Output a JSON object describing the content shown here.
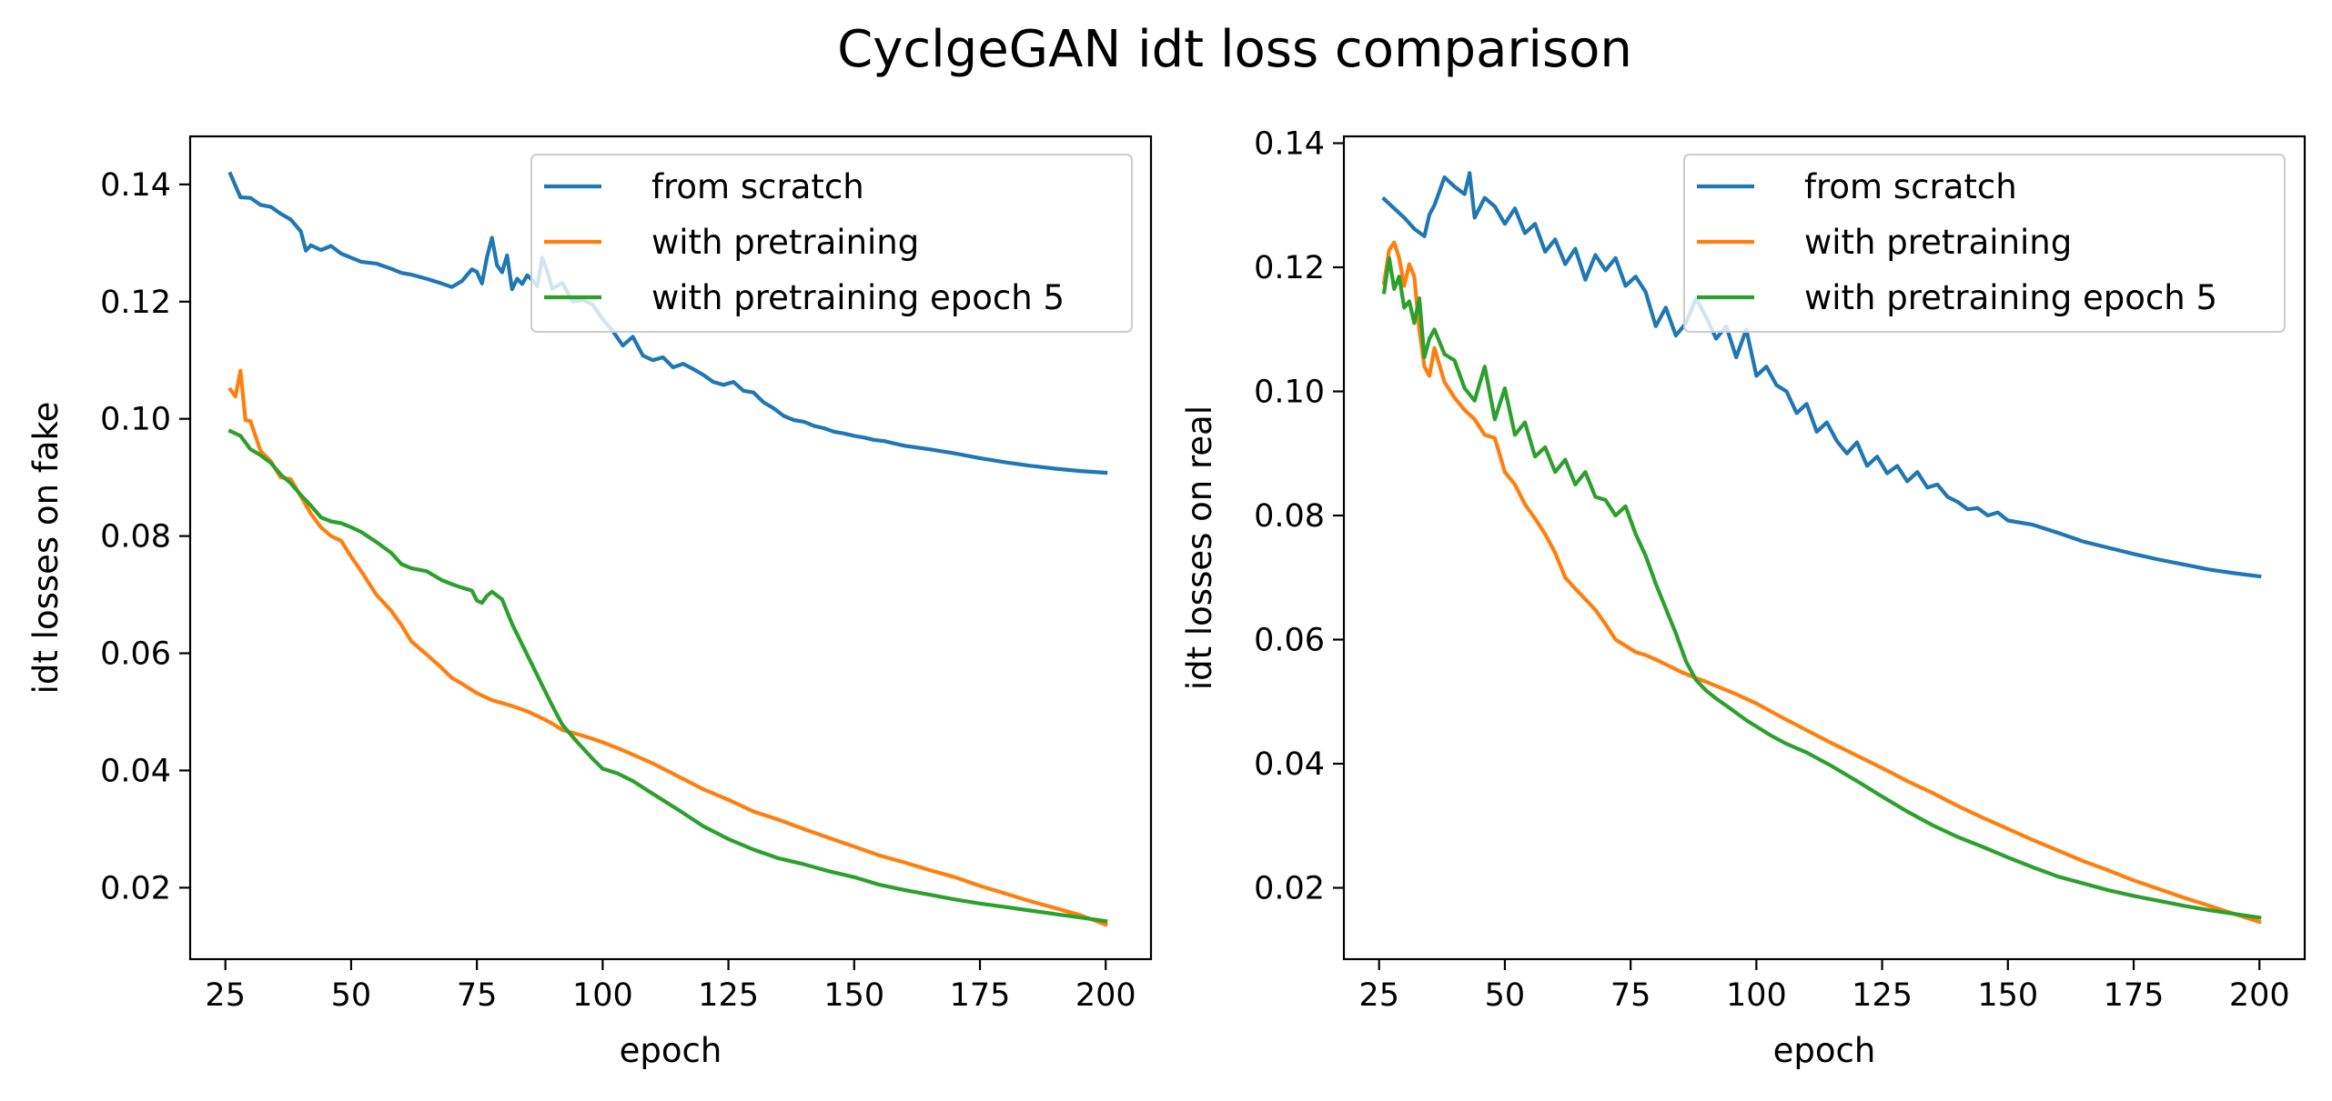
{
  "suptitle": "CyclgeGAN idt loss comparison",
  "colors": {
    "from_scratch": "#1f77b4",
    "with_pretraining": "#ff7f0e",
    "with_pretraining_epoch_5": "#2ca02c"
  },
  "chart_data": [
    {
      "type": "line",
      "title": "",
      "xlabel": "epoch",
      "ylabel": "idt losses on fake",
      "xlim": [
        18,
        209
      ],
      "ylim": [
        0.0078,
        0.1482
      ],
      "xticks": [
        25,
        50,
        75,
        100,
        125,
        150,
        175,
        200
      ],
      "xtick_labels": [
        "25",
        "50",
        "75",
        "100",
        "125",
        "150",
        "175",
        "200"
      ],
      "yticks": [
        0.02,
        0.04,
        0.06,
        0.08,
        0.1,
        0.12,
        0.14
      ],
      "ytick_labels": [
        "0.02",
        "0.04",
        "0.06",
        "0.08",
        "0.10",
        "0.12",
        "0.14"
      ],
      "grid": false,
      "legend_position": "top-right",
      "series": [
        {
          "name": "from scratch",
          "color": "#1f77b4",
          "x": [
            26,
            28,
            30,
            32,
            34,
            36,
            38,
            40,
            41,
            42,
            44,
            46,
            48,
            50,
            52,
            55,
            58,
            60,
            62,
            65,
            68,
            70,
            72,
            74,
            75,
            76,
            77,
            78,
            79,
            80,
            81,
            82,
            83,
            84,
            85,
            86,
            87,
            88,
            89,
            90,
            92,
            94,
            96,
            98,
            100,
            102,
            104,
            106,
            108,
            110,
            112,
            114,
            116,
            118,
            120,
            122,
            124,
            126,
            128,
            130,
            132,
            134,
            136,
            138,
            140,
            142,
            144,
            146,
            148,
            150,
            152,
            154,
            156,
            158,
            160,
            165,
            170,
            175,
            180,
            185,
            190,
            195,
            200
          ],
          "y": [
            0.1418,
            0.1378,
            0.1377,
            0.1365,
            0.1362,
            0.135,
            0.134,
            0.132,
            0.1287,
            0.1296,
            0.1288,
            0.1295,
            0.1282,
            0.1275,
            0.1268,
            0.1265,
            0.1256,
            0.1249,
            0.1246,
            0.1239,
            0.1231,
            0.1225,
            0.1235,
            0.1255,
            0.1251,
            0.1231,
            0.1276,
            0.1309,
            0.1262,
            0.125,
            0.1279,
            0.1221,
            0.1239,
            0.123,
            0.1245,
            0.1237,
            0.1226,
            0.1275,
            0.1251,
            0.1222,
            0.1232,
            0.12,
            0.1203,
            0.1195,
            0.117,
            0.115,
            0.1125,
            0.114,
            0.1108,
            0.11,
            0.1105,
            0.1088,
            0.1094,
            0.1085,
            0.1075,
            0.1063,
            0.1058,
            0.1063,
            0.1048,
            0.1045,
            0.1028,
            0.1018,
            0.1005,
            0.0998,
            0.0995,
            0.0988,
            0.0984,
            0.0978,
            0.0975,
            0.0971,
            0.0968,
            0.0964,
            0.0962,
            0.0958,
            0.0954,
            0.0948,
            0.0941,
            0.0933,
            0.0926,
            0.092,
            0.0915,
            0.0911,
            0.0908
          ]
        },
        {
          "name": "with pretraining",
          "color": "#ff7f0e",
          "x": [
            26,
            27,
            28,
            29,
            30,
            32,
            34,
            36,
            38,
            40,
            42,
            44,
            46,
            48,
            50,
            52,
            55,
            58,
            60,
            62,
            65,
            68,
            70,
            72,
            75,
            78,
            80,
            82,
            85,
            88,
            90,
            92,
            95,
            98,
            100,
            103,
            106,
            110,
            115,
            120,
            125,
            130,
            135,
            140,
            145,
            150,
            155,
            160,
            165,
            170,
            175,
            180,
            185,
            190,
            195,
            200
          ],
          "y": [
            0.105,
            0.1038,
            0.1082,
            0.0998,
            0.0996,
            0.0945,
            0.0928,
            0.09,
            0.0897,
            0.0868,
            0.0838,
            0.0815,
            0.08,
            0.0792,
            0.0765,
            0.074,
            0.07,
            0.0672,
            0.0648,
            0.062,
            0.0598,
            0.0575,
            0.0558,
            0.0548,
            0.0532,
            0.052,
            0.0515,
            0.051,
            0.0501,
            0.0489,
            0.048,
            0.0469,
            0.0462,
            0.0454,
            0.0448,
            0.0438,
            0.0427,
            0.0412,
            0.039,
            0.0368,
            0.035,
            0.033,
            0.0316,
            0.03,
            0.0285,
            0.027,
            0.0255,
            0.0243,
            0.023,
            0.0218,
            0.0203,
            0.019,
            0.0177,
            0.0165,
            0.0153,
            0.0137
          ]
        },
        {
          "name": "with pretraining epoch 5",
          "color": "#2ca02c",
          "x": [
            26,
            28,
            30,
            32,
            34,
            36,
            38,
            40,
            42,
            44,
            46,
            48,
            50,
            52,
            55,
            58,
            60,
            62,
            65,
            68,
            70,
            72,
            74,
            75,
            76,
            77,
            78,
            80,
            82,
            84,
            86,
            88,
            90,
            92,
            95,
            98,
            100,
            103,
            106,
            110,
            115,
            120,
            125,
            130,
            135,
            140,
            145,
            150,
            155,
            160,
            165,
            170,
            175,
            180,
            185,
            190,
            195,
            200
          ],
          "y": [
            0.0979,
            0.0971,
            0.0948,
            0.0938,
            0.0925,
            0.0905,
            0.089,
            0.087,
            0.0852,
            0.0832,
            0.0825,
            0.0822,
            0.0815,
            0.0807,
            0.079,
            0.0771,
            0.0752,
            0.0745,
            0.074,
            0.0725,
            0.0718,
            0.0712,
            0.0707,
            0.069,
            0.0686,
            0.0698,
            0.0705,
            0.0692,
            0.065,
            0.0615,
            0.058,
            0.0545,
            0.051,
            0.0478,
            0.0448,
            0.042,
            0.0403,
            0.0395,
            0.0382,
            0.036,
            0.0333,
            0.0305,
            0.0283,
            0.0265,
            0.025,
            0.024,
            0.0228,
            0.0218,
            0.0205,
            0.0196,
            0.0188,
            0.018,
            0.0173,
            0.0167,
            0.0161,
            0.0155,
            0.0149,
            0.0143
          ]
        }
      ]
    },
    {
      "type": "line",
      "title": "",
      "xlabel": "epoch",
      "ylabel": "idt losses on real",
      "xlim": [
        18,
        209
      ],
      "ylim": [
        0.0085,
        0.1411
      ],
      "xticks": [
        25,
        50,
        75,
        100,
        125,
        150,
        175,
        200
      ],
      "xtick_labels": [
        "25",
        "50",
        "75",
        "100",
        "125",
        "150",
        "175",
        "200"
      ],
      "yticks": [
        0.02,
        0.04,
        0.06,
        0.08,
        0.1,
        0.12,
        0.14
      ],
      "ytick_labels": [
        "0.02",
        "0.04",
        "0.06",
        "0.08",
        "0.10",
        "0.12",
        "0.14"
      ],
      "grid": false,
      "legend_position": "top-right",
      "series": [
        {
          "name": "from scratch",
          "color": "#1f77b4",
          "x": [
            26,
            28,
            30,
            32,
            34,
            35,
            36,
            38,
            40,
            42,
            43,
            44,
            46,
            48,
            50,
            52,
            54,
            56,
            58,
            60,
            62,
            64,
            66,
            68,
            70,
            72,
            74,
            76,
            78,
            80,
            82,
            84,
            86,
            88,
            90,
            92,
            94,
            96,
            98,
            100,
            102,
            104,
            106,
            108,
            110,
            112,
            114,
            116,
            118,
            120,
            122,
            124,
            126,
            128,
            130,
            132,
            134,
            136,
            138,
            140,
            142,
            144,
            146,
            148,
            150,
            155,
            160,
            165,
            170,
            175,
            180,
            185,
            190,
            195,
            200
          ],
          "y": [
            0.131,
            0.1295,
            0.128,
            0.1262,
            0.125,
            0.1285,
            0.13,
            0.1345,
            0.133,
            0.1318,
            0.1352,
            0.128,
            0.1312,
            0.1298,
            0.127,
            0.1295,
            0.1255,
            0.127,
            0.1225,
            0.1245,
            0.1205,
            0.123,
            0.118,
            0.122,
            0.1195,
            0.1215,
            0.117,
            0.1185,
            0.116,
            0.1105,
            0.1135,
            0.109,
            0.111,
            0.115,
            0.112,
            0.1085,
            0.1105,
            0.1055,
            0.11,
            0.1025,
            0.104,
            0.101,
            0.1,
            0.0965,
            0.098,
            0.0935,
            0.095,
            0.092,
            0.09,
            0.0918,
            0.088,
            0.0895,
            0.0868,
            0.088,
            0.0855,
            0.087,
            0.0845,
            0.085,
            0.083,
            0.0822,
            0.081,
            0.0812,
            0.08,
            0.0805,
            0.0792,
            0.0785,
            0.0772,
            0.0758,
            0.0748,
            0.0738,
            0.0729,
            0.0721,
            0.0713,
            0.0707,
            0.0702
          ]
        },
        {
          "name": "with pretraining",
          "color": "#ff7f0e",
          "x": [
            26,
            27,
            28,
            29,
            30,
            31,
            32,
            33,
            34,
            35,
            36,
            38,
            40,
            42,
            44,
            46,
            48,
            50,
            52,
            54,
            56,
            58,
            60,
            62,
            64,
            66,
            68,
            70,
            72,
            74,
            76,
            78,
            80,
            82,
            85,
            88,
            90,
            93,
            96,
            100,
            105,
            110,
            115,
            120,
            125,
            130,
            135,
            140,
            145,
            150,
            155,
            160,
            165,
            170,
            175,
            180,
            185,
            190,
            195,
            200
          ],
          "y": [
            0.1175,
            0.1228,
            0.124,
            0.1215,
            0.117,
            0.1205,
            0.1185,
            0.11,
            0.104,
            0.1025,
            0.107,
            0.1015,
            0.099,
            0.097,
            0.0955,
            0.093,
            0.0925,
            0.087,
            0.085,
            0.0818,
            0.0795,
            0.077,
            0.074,
            0.07,
            0.0682,
            0.0665,
            0.0648,
            0.0625,
            0.06,
            0.059,
            0.058,
            0.0575,
            0.0568,
            0.056,
            0.0548,
            0.0538,
            0.0532,
            0.0522,
            0.0512,
            0.0497,
            0.0475,
            0.0454,
            0.0433,
            0.0413,
            0.0393,
            0.0372,
            0.0353,
            0.0332,
            0.0313,
            0.0295,
            0.0277,
            0.026,
            0.0243,
            0.0228,
            0.0212,
            0.0198,
            0.0184,
            0.0171,
            0.0158,
            0.0145
          ]
        },
        {
          "name": "with pretraining epoch 5",
          "color": "#2ca02c",
          "x": [
            26,
            27,
            28,
            29,
            30,
            31,
            32,
            33,
            34,
            35,
            36,
            38,
            40,
            42,
            44,
            46,
            48,
            50,
            52,
            54,
            56,
            58,
            60,
            62,
            64,
            66,
            68,
            70,
            72,
            74,
            76,
            78,
            80,
            82,
            84,
            86,
            88,
            90,
            92,
            95,
            98,
            100,
            103,
            106,
            110,
            115,
            120,
            125,
            130,
            135,
            140,
            145,
            150,
            155,
            160,
            165,
            170,
            175,
            180,
            185,
            190,
            195,
            200
          ],
          "y": [
            0.116,
            0.1215,
            0.1165,
            0.1185,
            0.1135,
            0.1145,
            0.111,
            0.115,
            0.1055,
            0.1085,
            0.11,
            0.106,
            0.105,
            0.1005,
            0.0985,
            0.104,
            0.0955,
            0.1005,
            0.093,
            0.095,
            0.0895,
            0.091,
            0.087,
            0.089,
            0.085,
            0.087,
            0.083,
            0.0825,
            0.08,
            0.0815,
            0.077,
            0.0735,
            0.069,
            0.065,
            0.061,
            0.0565,
            0.0535,
            0.0518,
            0.0505,
            0.0488,
            0.047,
            0.046,
            0.0445,
            0.0432,
            0.0418,
            0.0396,
            0.0372,
            0.0347,
            0.0323,
            0.0301,
            0.0282,
            0.0266,
            0.0249,
            0.0233,
            0.0218,
            0.0207,
            0.0196,
            0.0187,
            0.0179,
            0.0171,
            0.0164,
            0.0158,
            0.0152
          ]
        }
      ]
    }
  ]
}
